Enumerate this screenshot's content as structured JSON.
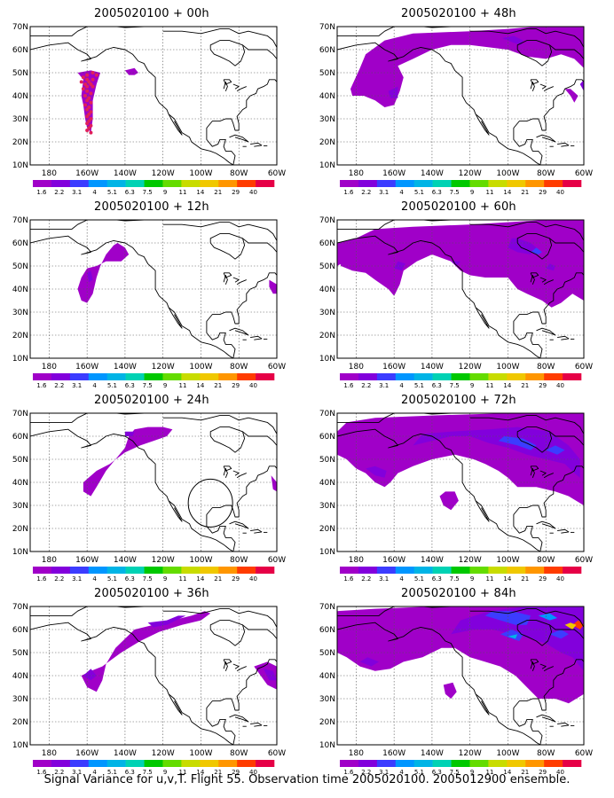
{
  "panels": [
    {
      "title": "2005020100 + 00h",
      "key": "h00"
    },
    {
      "title": "2005020100 + 12h",
      "key": "h12"
    },
    {
      "title": "2005020100 + 24h",
      "key": "h24"
    },
    {
      "title": "2005020100 + 36h",
      "key": "h36"
    },
    {
      "title": "2005020100 + 48h",
      "key": "h48"
    },
    {
      "title": "2005020100 + 60h",
      "key": "h60"
    },
    {
      "title": "2005020100 + 72h",
      "key": "h72"
    },
    {
      "title": "2005020100 + 84h",
      "key": "h84"
    }
  ],
  "axes": {
    "lat_labels": [
      "70N",
      "60N",
      "50N",
      "40N",
      "30N",
      "20N",
      "10N"
    ],
    "lon_labels": [
      "180",
      "160W",
      "140W",
      "120W",
      "100W",
      "80W",
      "60W"
    ]
  },
  "colorbar": {
    "labels": [
      "1.6",
      "2.2",
      "3.1",
      "4",
      "5.1",
      "6.3",
      "7.5",
      "9",
      "11",
      "14",
      "21",
      "29",
      "40"
    ],
    "colors": [
      "#a000c8",
      "#8200dc",
      "#3c3cff",
      "#0096ff",
      "#00b4e6",
      "#00d2b4",
      "#00c800",
      "#64dc00",
      "#c8dc00",
      "#f0c800",
      "#ff9600",
      "#ff3c00",
      "#e60046"
    ]
  },
  "footer": {
    "caption": "Signal Variance for u,v,T. Flight 55. Observation time 2005020100. 2005012900 ensemble."
  }
}
